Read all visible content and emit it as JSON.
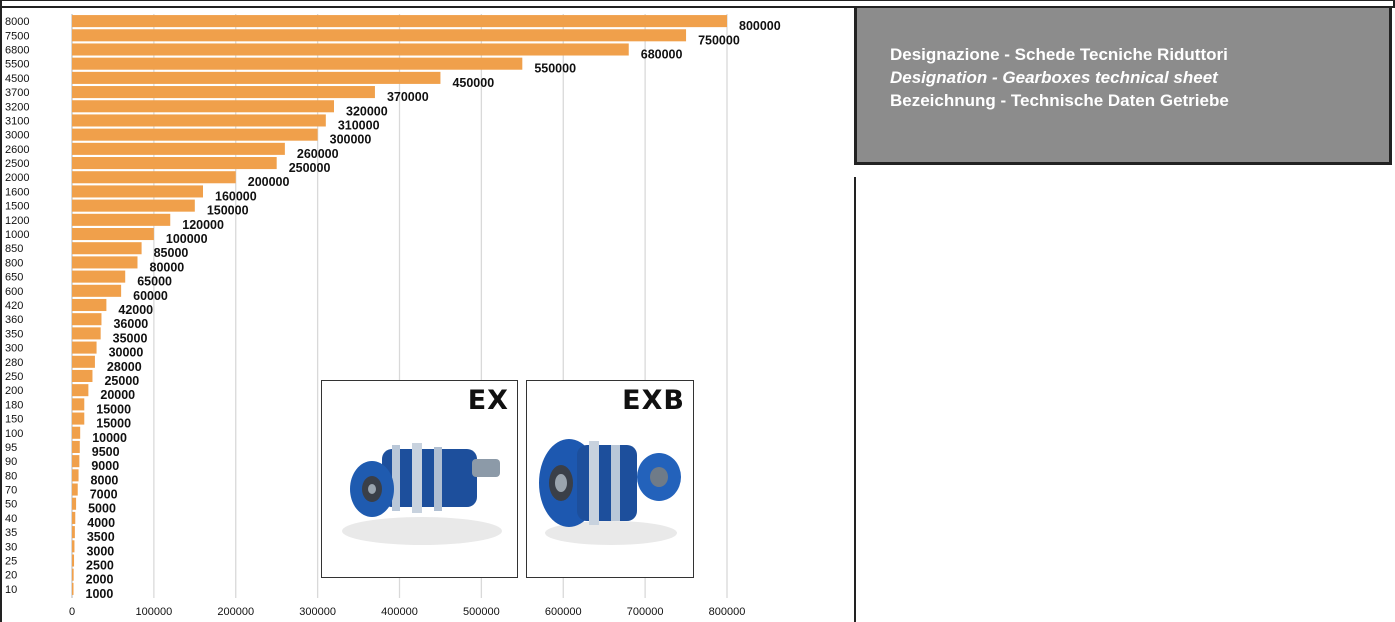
{
  "header": {
    "line_it": "Designazione - Schede Tecniche Riduttori",
    "line_en": "Designation - Gearboxes technical sheet",
    "line_de": "Bezeichnung - Technische Daten Getriebe"
  },
  "products": [
    {
      "label": "EX"
    },
    {
      "label": "EXB"
    }
  ],
  "colors": {
    "bar": "#f0a04b",
    "grid": "#d9d9d9",
    "panel": "#8c8c8c"
  },
  "chart_data": {
    "type": "bar",
    "orientation": "horizontal",
    "categories": [
      "8000",
      "7500",
      "6800",
      "5500",
      "4500",
      "3700",
      "3200",
      "3100",
      "3000",
      "2600",
      "2500",
      "2000",
      "1600",
      "1500",
      "1200",
      "1000",
      "850",
      "800",
      "650",
      "600",
      "420",
      "360",
      "350",
      "300",
      "280",
      "250",
      "200",
      "180",
      "150",
      "100",
      "95",
      "90",
      "80",
      "70",
      "50",
      "40",
      "35",
      "30",
      "25",
      "20",
      "10"
    ],
    "values": [
      800000,
      750000,
      680000,
      550000,
      450000,
      370000,
      320000,
      310000,
      300000,
      260000,
      250000,
      200000,
      160000,
      150000,
      120000,
      100000,
      85000,
      80000,
      65000,
      60000,
      42000,
      36000,
      35000,
      30000,
      28000,
      25000,
      20000,
      15000,
      15000,
      10000,
      9500,
      9000,
      8000,
      7000,
      5000,
      4000,
      3500,
      3000,
      2500,
      2000,
      1000
    ],
    "data_labels": [
      "800000",
      "750000",
      "680000",
      "550000",
      "450000",
      "370000",
      "320000",
      "310000",
      "300000",
      "260000",
      "250000",
      "200000",
      "160000",
      "150000",
      "120000",
      "100000",
      "85000",
      "80000",
      "65000",
      "60000",
      "42000",
      "36000",
      "35000",
      "30000",
      "28000",
      "25000",
      "20000",
      "15000",
      "15000",
      "10000",
      "9500",
      "9000",
      "8000",
      "7000",
      "5000",
      "4000",
      "3500",
      "3000",
      "2500",
      "2000",
      "1000"
    ],
    "xticks": [
      0,
      100000,
      200000,
      300000,
      400000,
      500000,
      600000,
      700000,
      800000
    ],
    "xtick_labels": [
      "0",
      "100000",
      "200000",
      "300000",
      "400000",
      "500000",
      "600000",
      "700000",
      "800000"
    ],
    "xlim": [
      0,
      800000
    ],
    "grid": true,
    "legend": "none"
  }
}
